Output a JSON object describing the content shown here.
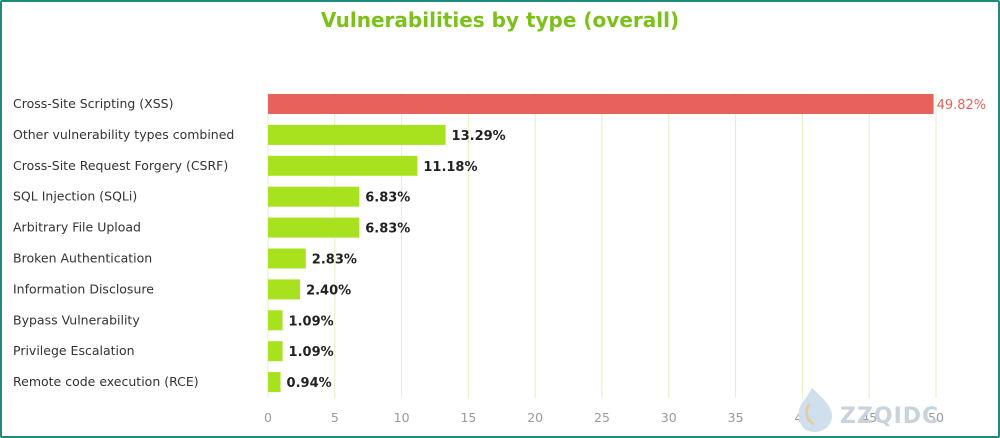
{
  "chart_data": {
    "type": "bar",
    "orientation": "horizontal",
    "title": "Vulnerabilities by type (overall)",
    "categories": [
      "Cross-Site Scripting (XSS)",
      "Other vulnerability types combined",
      "Cross-Site Request Forgery (CSRF)",
      "SQL Injection (SQLi)",
      "Arbitrary File Upload",
      "Broken Authentication",
      "Information Disclosure",
      "Bypass Vulnerability",
      "Privilege Escalation",
      "Remote code execution (RCE)"
    ],
    "values": [
      49.82,
      13.29,
      11.18,
      6.83,
      6.83,
      2.83,
      2.4,
      1.09,
      1.09,
      0.94
    ],
    "value_labels": [
      "49.82%",
      "13.29%",
      "11.18%",
      "6.83%",
      "6.83%",
      "2.83%",
      "2.40%",
      "1.09%",
      "1.09%",
      "0.94%"
    ],
    "xlim": [
      0,
      50
    ],
    "xticks": [
      "0",
      "5",
      "10",
      "15",
      "20",
      "25",
      "30",
      "35",
      "40",
      "45",
      "50"
    ],
    "grid": true,
    "colors": {
      "highlight": "#e8625c",
      "bar": "#a8e21f",
      "title": "#7cc11a",
      "grid": "#e3f0c4",
      "border": "#1f8a7a"
    }
  },
  "watermark": {
    "text": "ZZQIDC"
  }
}
